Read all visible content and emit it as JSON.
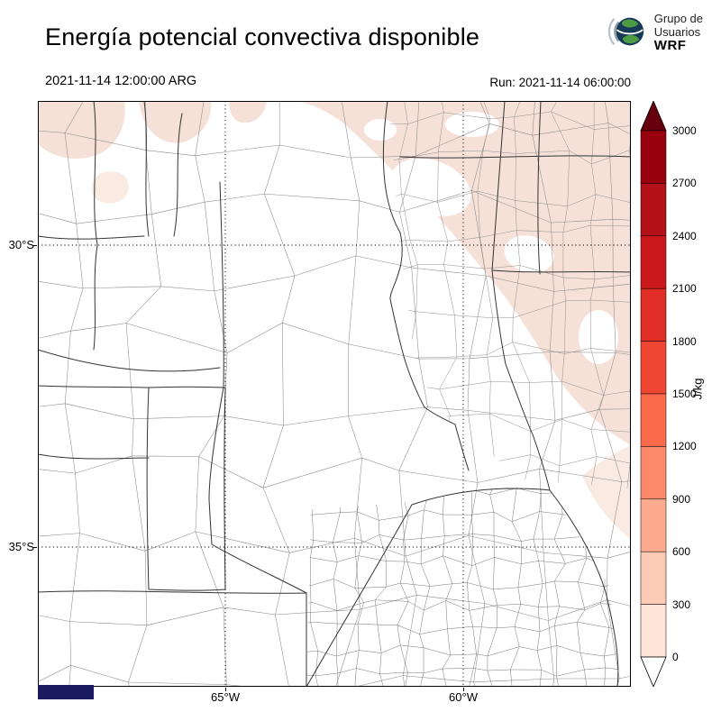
{
  "header": {
    "title": "Energía potencial convectiva disponible",
    "valid_time": "2021-11-14 12:00:00 ARG",
    "run_time": "Run: 2021-11-14 06:00:00",
    "logo": {
      "line1": "Grupo de",
      "line2": "Usuarios",
      "line3": "WRF"
    }
  },
  "map": {
    "y_ticks": [
      "30°S",
      "35°S"
    ],
    "x_ticks": [
      "65°W",
      "60°W"
    ],
    "shading_low_color": "#f6e1d8",
    "shading_faint_color": "#f9eae2",
    "border_color": "#333333",
    "watermark_color": "#1a1a60"
  },
  "colorbar": {
    "unit": "J/kg",
    "ticks": [
      "3000",
      "2700",
      "2400",
      "2100",
      "1800",
      "1500",
      "1200",
      "900",
      "600",
      "300",
      "0"
    ],
    "over_color": "#67000d",
    "under_color": "#ffffff",
    "segments": [
      {
        "range": "2700-3000",
        "color": "#99000d"
      },
      {
        "range": "2400-2700",
        "color": "#b31218"
      },
      {
        "range": "2100-2400",
        "color": "#ca181d"
      },
      {
        "range": "1800-2100",
        "color": "#e02d26"
      },
      {
        "range": "1500-1800",
        "color": "#ef4533"
      },
      {
        "range": "1200-1500",
        "color": "#fb6a4a"
      },
      {
        "range": "900-1200",
        "color": "#fc8a6a"
      },
      {
        "range": "600-900",
        "color": "#fcab8f"
      },
      {
        "range": "300-600",
        "color": "#fdcab5"
      },
      {
        "range": "0-300",
        "color": "#fee5d8"
      }
    ]
  },
  "chart_data": {
    "type": "heatmap",
    "title": "Energía potencial convectiva disponible",
    "units": "J/kg",
    "valid_time": "2021-11-14 12:00:00 ARG",
    "run_time": "2021-11-14 06:00:00",
    "x_axis": {
      "label": "",
      "ticks": [
        "65°W",
        "60°W"
      ]
    },
    "y_axis": {
      "label": "",
      "ticks": [
        "30°S",
        "35°S"
      ]
    },
    "colorbar_levels": [
      0,
      300,
      600,
      900,
      1200,
      1500,
      1800,
      2100,
      2400,
      2700,
      3000
    ],
    "colorbar_extend": "both",
    "field_summary": "CAPE near 0 J/kg over most of central Argentina; values in the 0-300 J/kg range shade the northeast sector of the domain and small patches in the northwest corner"
  }
}
